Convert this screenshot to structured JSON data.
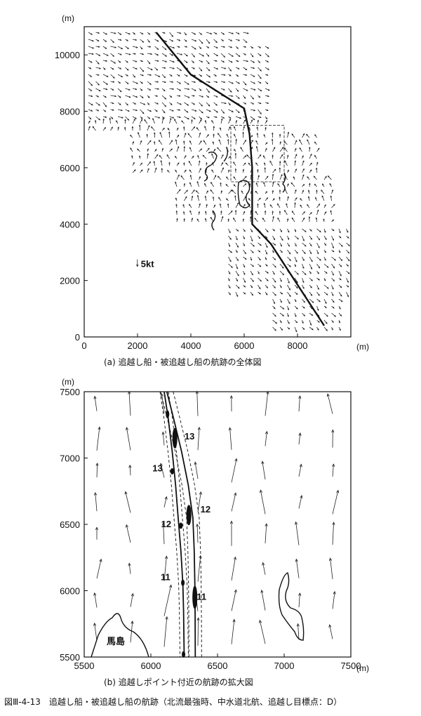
{
  "figure_caption": "図Ⅲ-4-13　追越し船・被追越し船の航跡（北流最強時、中水道北航、追越し目標点：D）",
  "chart_data": [
    {
      "id": "a",
      "type": "scatter",
      "caption": "(a)  追越し船・被追越し船の航跡の全体図",
      "xlabel": "(m)",
      "ylabel": "(m)",
      "xlim": [
        0,
        10000
      ],
      "ylim": [
        0,
        11000
      ],
      "xticks": [
        "0",
        "2000",
        "4000",
        "6000",
        "8000"
      ],
      "yticks": [
        "0",
        "2000",
        "4000",
        "6000",
        "8000",
        "10000"
      ],
      "xtick_values": [
        0,
        2000,
        4000,
        6000,
        8000
      ],
      "ytick_values": [
        0,
        2000,
        4000,
        6000,
        8000,
        10000
      ],
      "scale_label": "5kt",
      "scale_position": [
        2100,
        2600
      ],
      "track": {
        "x": [
          2700,
          4000,
          6000,
          6200,
          6300,
          6300,
          7000,
          9000
        ],
        "y": [
          10800,
          9300,
          8100,
          7200,
          6000,
          4000,
          3300,
          400
        ]
      },
      "zoom_box": {
        "x0": 5500,
        "x1": 7500,
        "y0": 5500,
        "y1": 7500
      }
    },
    {
      "id": "b",
      "type": "scatter",
      "caption": "(b)  追越しポイント付近の航跡の拡大図",
      "xlabel": "(m)",
      "ylabel": "(m)",
      "xlim": [
        5500,
        7500
      ],
      "ylim": [
        5500,
        7500
      ],
      "xticks": [
        "5500",
        "6000",
        "6500",
        "7000",
        "7500"
      ],
      "yticks": [
        "5500",
        "6000",
        "6500",
        "7000",
        "7500"
      ],
      "xtick_values": [
        5500,
        6000,
        6500,
        7000,
        7500
      ],
      "ytick_values": [
        5500,
        6000,
        6500,
        7000,
        7500
      ],
      "island_label": "馬島",
      "overtaking_track": {
        "x": [
          6100,
          6130,
          6160,
          6185,
          6205,
          6225,
          6240,
          6245,
          6248,
          6250
        ],
        "y": [
          7500,
          7300,
          7050,
          6800,
          6550,
          6300,
          6050,
          5850,
          5650,
          5500
        ]
      },
      "overtaken_track": {
        "x": [
          6120,
          6170,
          6230,
          6280,
          6315,
          6325,
          6330,
          6332,
          6333
        ],
        "y": [
          7500,
          7300,
          7050,
          6800,
          6550,
          6300,
          6050,
          5800,
          5500
        ]
      },
      "markers": [
        {
          "label": "13",
          "x": 6290,
          "y": 7140
        },
        {
          "label": "13",
          "x": 6050,
          "y": 6900
        },
        {
          "label": "12",
          "x": 6410,
          "y": 6590
        },
        {
          "label": "12",
          "x": 6115,
          "y": 6480
        },
        {
          "label": "11",
          "x": 6110,
          "y": 6080
        },
        {
          "label": "11",
          "x": 6380,
          "y": 5930
        }
      ]
    }
  ]
}
